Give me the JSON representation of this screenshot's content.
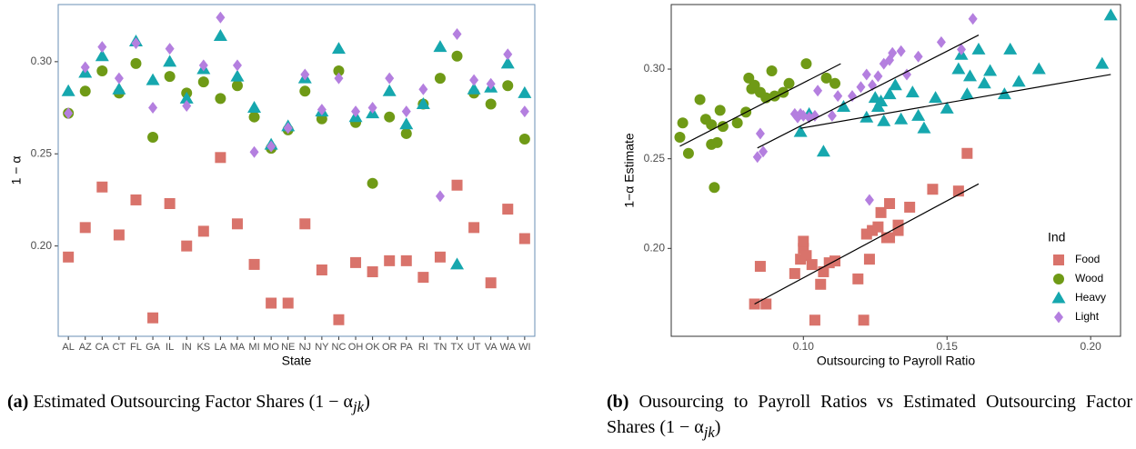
{
  "chart_data": [
    {
      "type": "scatter",
      "xlabel": "State",
      "ylabel": "1 − α",
      "categories": [
        "AL",
        "AZ",
        "CA",
        "CT",
        "FL",
        "GA",
        "IL",
        "IN",
        "KS",
        "LA",
        "MA",
        "MI",
        "MO",
        "NE",
        "NJ",
        "NY",
        "NC",
        "OH",
        "OK",
        "OR",
        "PA",
        "RI",
        "TN",
        "TX",
        "UT",
        "VA",
        "WA",
        "WI"
      ],
      "ylim": [
        0.151,
        0.331
      ],
      "yticks": [
        {
          "value": 0.2,
          "label": "0.20"
        },
        {
          "value": 0.25,
          "label": "0.25"
        },
        {
          "value": 0.3,
          "label": "0.30"
        }
      ],
      "series": [
        {
          "name": "Food",
          "color": "#d9736b",
          "marker": "square",
          "values": [
            0.194,
            0.21,
            0.232,
            0.206,
            0.225,
            0.161,
            0.223,
            0.2,
            0.208,
            0.248,
            0.212,
            0.19,
            0.169,
            0.169,
            0.212,
            0.187,
            0.16,
            0.191,
            0.186,
            0.192,
            0.192,
            0.183,
            0.194,
            0.233,
            0.21,
            0.18,
            0.22,
            0.204
          ]
        },
        {
          "name": "Wood",
          "color": "#6f9a16",
          "marker": "circle",
          "values": [
            0.272,
            0.284,
            0.295,
            0.283,
            0.299,
            0.259,
            0.292,
            0.283,
            0.289,
            0.28,
            0.287,
            0.27,
            0.253,
            0.263,
            0.284,
            0.269,
            0.295,
            0.267,
            0.234,
            0.27,
            0.261,
            0.277,
            0.291,
            0.303,
            0.283,
            0.277,
            0.287,
            0.258
          ]
        },
        {
          "name": "Heavy",
          "color": "#16a7ae",
          "marker": "triangle",
          "values": [
            0.284,
            0.294,
            0.303,
            0.285,
            0.311,
            0.29,
            0.3,
            0.28,
            0.296,
            0.314,
            0.292,
            0.275,
            0.255,
            0.265,
            0.291,
            0.273,
            0.307,
            0.27,
            0.272,
            0.284,
            0.266,
            0.277,
            0.308,
            0.19,
            0.285,
            0.286,
            0.299,
            0.283
          ]
        },
        {
          "name": "Light",
          "color": "#b47fdf",
          "marker": "diamond",
          "values": [
            0.272,
            0.297,
            0.308,
            0.291,
            0.31,
            0.275,
            0.307,
            0.276,
            0.298,
            0.324,
            0.298,
            0.251,
            0.254,
            0.264,
            0.293,
            0.274,
            0.291,
            0.273,
            0.275,
            0.291,
            0.273,
            0.285,
            0.227,
            0.315,
            0.29,
            0.288,
            0.304,
            0.273
          ]
        }
      ]
    },
    {
      "type": "scatter",
      "xlabel": "Outsourcing to Payroll Ratio",
      "ylabel": "1−α Estimate",
      "xlim": [
        0.054,
        0.2104
      ],
      "ylim": [
        0.151,
        0.336
      ],
      "xticks": [
        {
          "value": 0.1,
          "label": "0.10"
        },
        {
          "value": 0.15,
          "label": "0.15"
        },
        {
          "value": 0.2,
          "label": "0.20"
        }
      ],
      "yticks": [
        {
          "value": 0.2,
          "label": "0.20"
        },
        {
          "value": 0.25,
          "label": "0.25"
        },
        {
          "value": 0.3,
          "label": "0.30"
        }
      ],
      "legend_title": "Ind",
      "legend": "bottom-right",
      "series": [
        {
          "name": "Food",
          "color": "#d9736b",
          "marker": "square",
          "x": [
            0.083,
            0.085,
            0.087,
            0.097,
            0.099,
            0.1,
            0.1,
            0.101,
            0.103,
            0.104,
            0.106,
            0.107,
            0.109,
            0.111,
            0.119,
            0.121,
            0.122,
            0.123,
            0.124,
            0.126,
            0.127,
            0.129,
            0.13,
            0.13,
            0.133,
            0.133,
            0.137,
            0.145,
            0.154,
            0.157
          ],
          "values": [
            0.169,
            0.19,
            0.169,
            0.186,
            0.194,
            0.2,
            0.204,
            0.196,
            0.191,
            0.16,
            0.18,
            0.187,
            0.192,
            0.193,
            0.183,
            0.16,
            0.208,
            0.194,
            0.21,
            0.212,
            0.22,
            0.206,
            0.225,
            0.206,
            0.213,
            0.21,
            0.223,
            0.233,
            0.232,
            0.253
          ],
          "trend": {
            "x": [
              0.083,
              0.161
            ],
            "values": [
              0.169,
              0.236
            ]
          }
        },
        {
          "name": "Wood",
          "color": "#6f9a16",
          "marker": "circle",
          "x": [
            0.057,
            0.058,
            0.06,
            0.064,
            0.066,
            0.068,
            0.068,
            0.069,
            0.07,
            0.071,
            0.072,
            0.077,
            0.08,
            0.081,
            0.082,
            0.083,
            0.085,
            0.087,
            0.089,
            0.09,
            0.093,
            0.095,
            0.101,
            0.108,
            0.111
          ],
          "values": [
            0.262,
            0.27,
            0.253,
            0.283,
            0.272,
            0.258,
            0.269,
            0.234,
            0.259,
            0.277,
            0.268,
            0.27,
            0.276,
            0.295,
            0.289,
            0.291,
            0.287,
            0.284,
            0.299,
            0.285,
            0.287,
            0.292,
            0.303,
            0.295,
            0.292
          ],
          "trend": {
            "x": [
              0.057,
              0.113
            ],
            "values": [
              0.257,
              0.303
            ]
          }
        },
        {
          "name": "Heavy",
          "color": "#16a7ae",
          "marker": "triangle",
          "x": [
            0.099,
            0.102,
            0.107,
            0.114,
            0.122,
            0.125,
            0.126,
            0.127,
            0.128,
            0.13,
            0.132,
            0.134,
            0.138,
            0.14,
            0.142,
            0.146,
            0.15,
            0.154,
            0.155,
            0.157,
            0.158,
            0.161,
            0.163,
            0.165,
            0.17,
            0.172,
            0.175,
            0.182,
            0.204,
            0.207
          ],
          "values": [
            0.265,
            0.275,
            0.254,
            0.279,
            0.273,
            0.284,
            0.279,
            0.282,
            0.271,
            0.286,
            0.291,
            0.272,
            0.287,
            0.274,
            0.267,
            0.284,
            0.278,
            0.3,
            0.308,
            0.286,
            0.296,
            0.311,
            0.292,
            0.299,
            0.286,
            0.311,
            0.293,
            0.3,
            0.303,
            0.33
          ],
          "trend": {
            "x": [
              0.099,
              0.207
            ],
            "values": [
              0.267,
              0.297
            ]
          }
        },
        {
          "name": "Light",
          "color": "#b47fdf",
          "marker": "diamond",
          "x": [
            0.084,
            0.086,
            0.085,
            0.097,
            0.098,
            0.099,
            0.1,
            0.102,
            0.104,
            0.105,
            0.11,
            0.112,
            0.117,
            0.12,
            0.122,
            0.123,
            0.124,
            0.126,
            0.128,
            0.13,
            0.131,
            0.134,
            0.136,
            0.14,
            0.148,
            0.155,
            0.159
          ],
          "values": [
            0.251,
            0.254,
            0.264,
            0.275,
            0.273,
            0.275,
            0.274,
            0.273,
            0.274,
            0.288,
            0.274,
            0.285,
            0.285,
            0.29,
            0.297,
            0.227,
            0.291,
            0.296,
            0.303,
            0.305,
            0.309,
            0.31,
            0.297,
            0.307,
            0.315,
            0.311,
            0.328
          ],
          "trend": {
            "x": [
              0.084,
              0.161
            ],
            "values": [
              0.256,
              0.319
            ]
          }
        }
      ]
    }
  ],
  "captions": [
    {
      "label": "(a)",
      "text": "Estimated Outsourcing Factor Shares (1 − α",
      "subscript": "jk",
      "close": ")"
    },
    {
      "label": "(b)",
      "text": "Ousourcing to Payroll Ratios vs Estimated Outsourcing Factor Shares (1 − α",
      "subscript": "jk",
      "close": ")"
    }
  ]
}
